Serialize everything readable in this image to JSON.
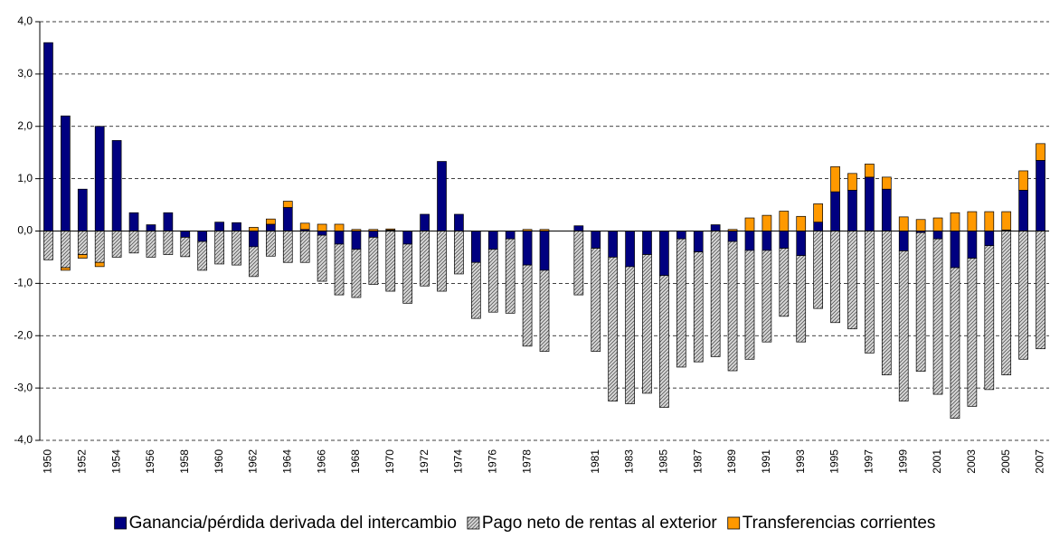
{
  "chart_data": {
    "type": "stacked_bar",
    "categories": [
      "1950",
      null,
      "1952",
      null,
      "1954",
      null,
      "1956",
      null,
      "1958",
      null,
      "1960",
      null,
      "1962",
      null,
      "1964",
      null,
      "1966",
      null,
      "1968",
      null,
      "1970",
      null,
      "1972",
      null,
      "1974",
      null,
      "1976",
      null,
      "1978",
      null,
      null,
      null,
      "1981",
      null,
      "1983",
      null,
      "1985",
      null,
      "1987",
      null,
      "1989",
      null,
      "1991",
      null,
      "1993",
      null,
      "1995",
      null,
      "1997",
      null,
      "1999",
      null,
      "2001",
      null,
      "2003",
      null,
      "2005",
      null,
      "2007"
    ],
    "series": [
      {
        "name": "Ganancia/pérdida derivada del intercambio",
        "color": "#000080",
        "hatch": false,
        "values": [
          3.6,
          2.2,
          0.8,
          2.0,
          1.73,
          0.35,
          0.12,
          0.35,
          -0.12,
          -0.2,
          0.17,
          0.16,
          -0.3,
          0.13,
          0.45,
          0.03,
          -0.08,
          -0.25,
          -0.35,
          -0.12,
          0.02,
          -0.25,
          0.32,
          1.33,
          0.32,
          -0.6,
          -0.35,
          -0.15,
          -0.65,
          -0.75,
          null,
          0.1,
          -0.33,
          -0.5,
          -0.68,
          -0.45,
          -0.85,
          -0.15,
          -0.4,
          0.12,
          -0.2,
          -0.37,
          -0.37,
          -0.33,
          -0.47,
          0.17,
          0.75,
          0.78,
          1.03,
          0.8,
          -0.38,
          -0.03,
          -0.15,
          -0.7,
          -0.52,
          -0.28,
          0.02,
          0.78,
          1.35
        ]
      },
      {
        "name": "Pago neto de rentas al exterior",
        "color": "#d9d9d9",
        "hatch": true,
        "values": [
          -0.55,
          -0.7,
          -0.45,
          -0.6,
          -0.5,
          -0.42,
          -0.5,
          -0.45,
          -0.37,
          -0.55,
          -0.63,
          -0.65,
          -0.57,
          -0.48,
          -0.6,
          -0.6,
          -0.88,
          -0.97,
          -0.92,
          -0.9,
          -1.15,
          -1.13,
          -1.05,
          -1.15,
          -0.82,
          -1.07,
          -1.2,
          -1.42,
          -1.55,
          -1.55,
          null,
          -1.22,
          -1.97,
          -2.75,
          -2.62,
          -2.65,
          -2.52,
          -2.45,
          -2.1,
          -2.4,
          -2.47,
          -2.08,
          -1.75,
          -1.3,
          -1.65,
          -1.48,
          -1.75,
          -1.87,
          -2.33,
          -2.75,
          -2.87,
          -2.65,
          -2.97,
          -2.88,
          -2.83,
          -2.75,
          -2.75,
          -2.45,
          -2.25
        ]
      },
      {
        "name": "Transferencias corrientes",
        "color": "#ff9900",
        "hatch": false,
        "values": [
          0,
          -0.05,
          -0.07,
          -0.08,
          0,
          0,
          0,
          0,
          0,
          0,
          0,
          0,
          0.07,
          0.1,
          0.12,
          0.12,
          0.13,
          0.13,
          0.03,
          0.03,
          0.02,
          0,
          0,
          0,
          0,
          0,
          0,
          0,
          0.03,
          0.03,
          null,
          0,
          0,
          0,
          0,
          0,
          0,
          0,
          0,
          0,
          0.03,
          0.25,
          0.3,
          0.38,
          0.28,
          0.35,
          0.48,
          0.32,
          0.25,
          0.23,
          0.27,
          0.22,
          0.25,
          0.35,
          0.37,
          0.37,
          0.35,
          0.37,
          0.32
        ]
      }
    ],
    "ylim": [
      -4,
      4
    ],
    "yticks": [
      {
        "value": -4,
        "label": "-4,0"
      },
      {
        "value": -3,
        "label": "-3,0"
      },
      {
        "value": -2,
        "label": "-2,0"
      },
      {
        "value": -1,
        "label": "-1,0"
      },
      {
        "value": 0,
        "label": "0,0"
      },
      {
        "value": 1,
        "label": "1,0"
      },
      {
        "value": 2,
        "label": "2,0"
      },
      {
        "value": 3,
        "label": "3,0"
      },
      {
        "value": 4,
        "label": "4,0"
      }
    ],
    "grid": true,
    "legend": "bottom"
  }
}
